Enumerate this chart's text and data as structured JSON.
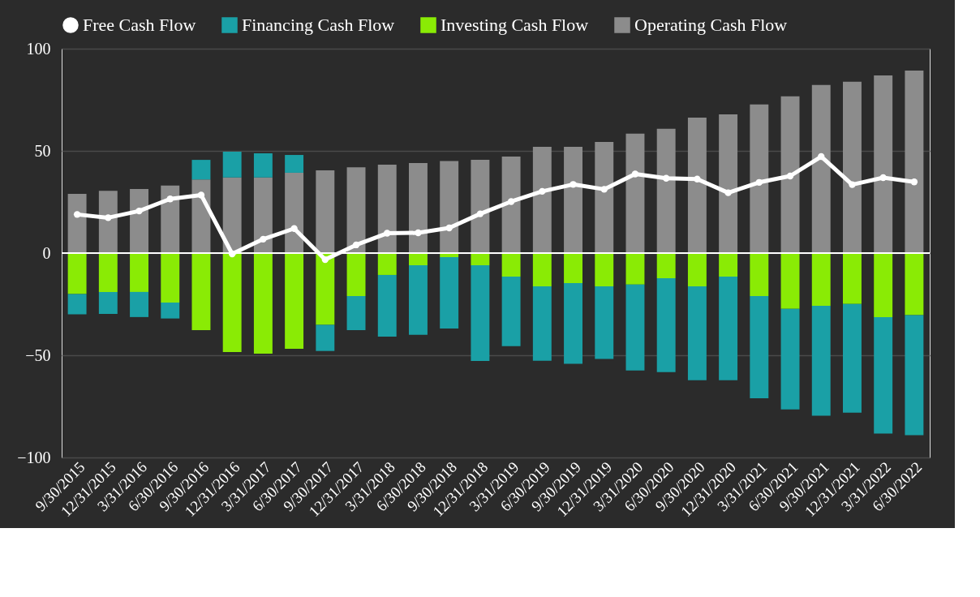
{
  "chart_data": {
    "type": "bar",
    "stacked": true,
    "categories": [
      "9/30/2015",
      "12/31/2015",
      "3/31/2016",
      "6/30/2016",
      "9/30/2016",
      "12/31/2016",
      "3/31/2017",
      "6/30/2017",
      "9/30/2017",
      "12/31/2017",
      "3/31/2018",
      "6/30/2018",
      "9/30/2018",
      "12/31/2018",
      "3/31/2019",
      "6/30/2019",
      "9/30/2019",
      "12/31/2019",
      "3/31/2020",
      "6/30/2020",
      "9/30/2020",
      "12/31/2020",
      "3/31/2021",
      "6/30/2021",
      "9/30/2021",
      "12/31/2021",
      "3/31/2022",
      "6/30/2022"
    ],
    "series": [
      {
        "name": "Operating Cash Flow",
        "color": "#8c8c8c",
        "values": [
          29,
          30.5,
          31.3,
          33,
          36,
          37,
          37,
          39.3,
          40.5,
          42,
          43.3,
          44,
          45,
          45.6,
          47.2,
          52,
          52,
          54.4,
          58.4,
          60.8,
          66.3,
          67.9,
          72.7,
          76.7,
          82.2,
          83.8,
          86.9,
          89.3
        ]
      },
      {
        "name": "Investing Cash Flow",
        "color": "#8aeb05",
        "values": [
          -20,
          -19,
          -19,
          -24.2,
          -37.7,
          -48.4,
          -49.2,
          -46.8,
          -35.1,
          -21,
          -10.7,
          -6,
          -2,
          -6,
          -11.5,
          -16.3,
          -14.7,
          -16.3,
          -15.4,
          -12.3,
          -16.3,
          -11.5,
          -21,
          -27.3,
          -25.8,
          -24.9,
          -31.3,
          -30.4
        ]
      },
      {
        "name": "Financing Cash Flow",
        "color": "#1aa0a6",
        "values": [
          -10,
          -10.8,
          -12.3,
          -7.8,
          9.6,
          12.6,
          11.8,
          8.7,
          -12.8,
          -16.7,
          -30.2,
          -34,
          -34.9,
          -46.8,
          -34,
          -36.4,
          -39.5,
          -35.5,
          -42,
          -45.9,
          -45.9,
          -50.7,
          -50,
          -49.2,
          -53.8,
          -53.2,
          -57,
          -58.7
        ]
      },
      {
        "name": "Free Cash Flow",
        "type": "line",
        "color": "#ffffff",
        "marker": "circle",
        "values": [
          18.9,
          17.3,
          20.6,
          26.5,
          28.4,
          -0.4,
          6.8,
          12,
          -3.2,
          4,
          9.7,
          9.9,
          12.3,
          19.2,
          25.2,
          30.2,
          33.6,
          31.2,
          38.7,
          36.6,
          36.2,
          29.5,
          34.6,
          37.7,
          47.2,
          33.5,
          36.9,
          34.8
        ]
      }
    ],
    "ylim": [
      -100,
      100
    ],
    "yticks": [
      -100,
      -50,
      0,
      50,
      100
    ],
    "grid": "y",
    "legend": "top",
    "ref_lines": [
      {
        "axis": "y",
        "value": 0,
        "color": "#ffffff"
      }
    ]
  }
}
